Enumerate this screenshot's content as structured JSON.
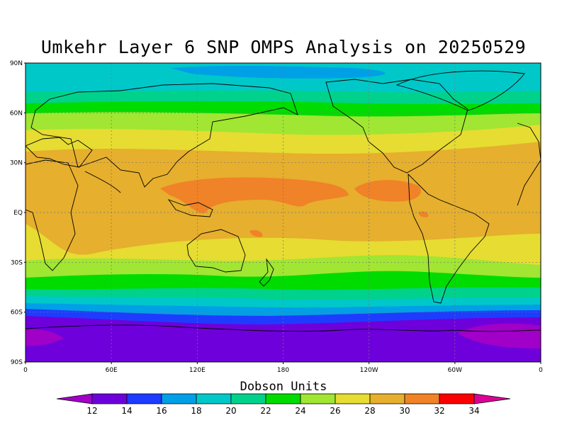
{
  "title": "Umkehr Layer 6 SNP OMPS Analysis on 20250529",
  "colorbar": {
    "title": "Dobson Units",
    "ticks": [
      "12",
      "14",
      "16",
      "18",
      "20",
      "22",
      "24",
      "26",
      "28",
      "30",
      "32",
      "34"
    ],
    "colors": [
      "#a000c8",
      "#6e00dc",
      "#1e3cff",
      "#00a0e6",
      "#00c8c8",
      "#00d28c",
      "#00dc00",
      "#a0e632",
      "#e6dc32",
      "#e6af2d",
      "#f08228",
      "#fa0000",
      "#dc0096"
    ]
  },
  "axes": {
    "lat_labels": [
      "90N",
      "60N",
      "30N",
      "EQ",
      "30S",
      "60S",
      "90S"
    ],
    "lon_labels": [
      "0",
      "60E",
      "120E",
      "180",
      "120W",
      "60W",
      "0"
    ]
  },
  "chart_data": {
    "type": "heatmap",
    "title": "Umkehr Layer 6 SNP OMPS Analysis on 20250529",
    "units": "Dobson Units",
    "lat_range": [
      -90,
      90
    ],
    "lon_range": [
      0,
      360
    ],
    "zonal_bands": [
      {
        "lat_from": 90,
        "lat_to": 78,
        "value": 20
      },
      {
        "lat_from": 78,
        "lat_to": 68,
        "value": 21
      },
      {
        "lat_from": 68,
        "lat_to": 62,
        "value": 22
      },
      {
        "lat_from": 62,
        "lat_to": 55,
        "value": 24
      },
      {
        "lat_from": 55,
        "lat_to": 44,
        "value": 26
      },
      {
        "lat_from": 44,
        "lat_to": 32,
        "value": 28
      },
      {
        "lat_from": 32,
        "lat_to": -15,
        "value": 30
      },
      {
        "lat_from": -15,
        "lat_to": -28,
        "value": 28
      },
      {
        "lat_from": -28,
        "lat_to": -38,
        "value": 26
      },
      {
        "lat_from": -38,
        "lat_to": -46,
        "value": 24
      },
      {
        "lat_from": -46,
        "lat_to": -51,
        "value": 22
      },
      {
        "lat_from": -51,
        "lat_to": -56,
        "value": 20
      },
      {
        "lat_from": -56,
        "lat_to": -60,
        "value": 18
      },
      {
        "lat_from": -60,
        "lat_to": -64,
        "value": 16
      },
      {
        "lat_from": -64,
        "lat_to": -90,
        "value": 14
      }
    ],
    "maxima": [
      {
        "lat": 18,
        "lon_from": 95,
        "lon_to": 210,
        "value": 32
      },
      {
        "lat": 17,
        "lon_from": 245,
        "lon_to": 280,
        "value": 32
      },
      {
        "lat": -20,
        "lon_from": 155,
        "lon_to": 160,
        "value": 32
      }
    ],
    "minima": [
      {
        "lat": -75,
        "lon_from": 320,
        "lon_to": 360,
        "value": 12
      },
      {
        "lat": -75,
        "lon_from": 0,
        "lon_to": 25,
        "value": 12
      }
    ]
  }
}
